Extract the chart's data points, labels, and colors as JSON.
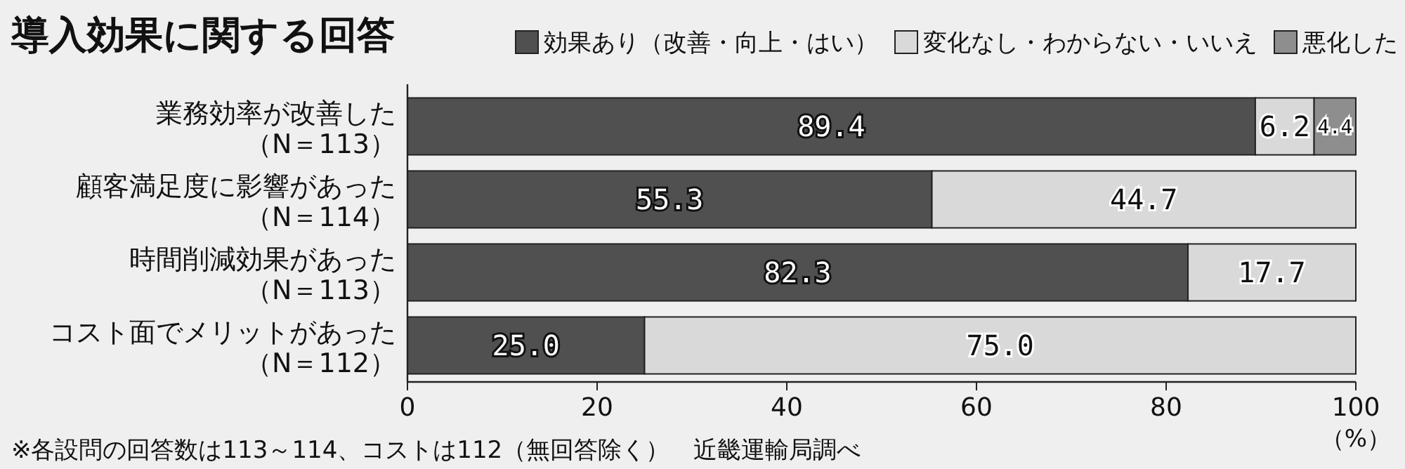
{
  "chart_data": {
    "type": "bar",
    "orientation": "horizontal",
    "stacked": true,
    "title": "導入効果に関する回答",
    "categories": [
      "業務効率が改善した（N＝113）",
      "顧客満足度に影響があった（N＝114）",
      "時間削減効果があった（N＝113）",
      "コスト面でメリットがあった（N＝112）"
    ],
    "series": [
      {
        "name": "効果あり（改善・向上・はい）",
        "color": "#505050",
        "values": [
          89.4,
          55.3,
          82.3,
          25.0
        ],
        "value_labels": [
          "89.4",
          "55.3",
          "82.3",
          "25.0"
        ]
      },
      {
        "name": "変化なし・わからない・いいえ",
        "color": "#d9d9d9",
        "values": [
          6.2,
          44.7,
          17.7,
          75.0
        ],
        "value_labels": [
          "6.2",
          "44.7",
          "17.7",
          "75.0"
        ]
      },
      {
        "name": "悪化した",
        "color": "#8e8e8e",
        "values": [
          4.4,
          null,
          null,
          null
        ],
        "value_labels": [
          "4.4",
          null,
          null,
          null
        ]
      }
    ],
    "xlim": [
      0,
      100
    ],
    "xticks": [
      0,
      20,
      40,
      60,
      80,
      100
    ],
    "xlabel": "（%）",
    "legend": "top right",
    "annotations": [
      "※各設問の回答数は113～114、コストは112（無回答除く）　近畿運輸局調べ"
    ]
  }
}
